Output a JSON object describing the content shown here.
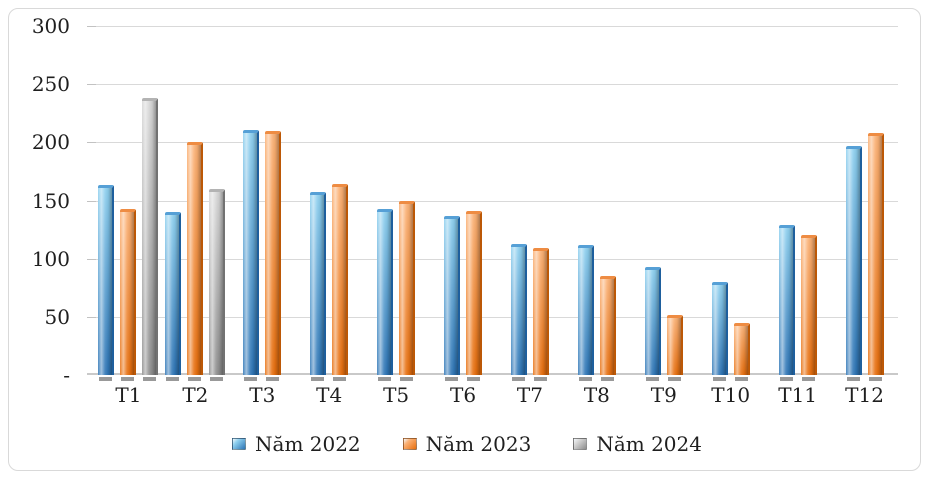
{
  "chart_data": {
    "type": "bar",
    "title": "",
    "categories": [
      "T1",
      "T2",
      "T3",
      "T4",
      "T5",
      "T6",
      "T7",
      "T8",
      "T9",
      "T10",
      "T11",
      "T12"
    ],
    "series": [
      {
        "name": "Năm 2022",
        "values": [
          163,
          140,
          211,
          157,
          143,
          137,
          113,
          112,
          93,
          80,
          129,
          197
        ],
        "color_top": "#8ed0ef",
        "color_bottom": "#2d74b5",
        "color_cap": "#56a0d6",
        "color_edge": "#1e5f9d"
      },
      {
        "name": "Năm 2023",
        "values": [
          143,
          200,
          210,
          164,
          150,
          141,
          109,
          85,
          52,
          45,
          120,
          208
        ],
        "color_top": "#fbb175",
        "color_bottom": "#e76e0d",
        "color_cap": "#ee8c43",
        "color_edge": "#bc5806"
      },
      {
        "name": "Năm 2024",
        "values": [
          238,
          160,
          null,
          null,
          null,
          null,
          null,
          null,
          null,
          null,
          null,
          null
        ],
        "color_top": "#d7d7d7",
        "color_bottom": "#8d8d8d",
        "color_cap": "#b3b3b3",
        "color_edge": "#727272"
      }
    ],
    "y_ticks": [
      {
        "label": "300",
        "value": 300
      },
      {
        "label": "250",
        "value": 250
      },
      {
        "label": "200",
        "value": 200
      },
      {
        "label": "150",
        "value": 150
      },
      {
        "label": "100",
        "value": 100
      },
      {
        "label": "50",
        "value": 50
      },
      {
        "label": "-",
        "value": 0
      }
    ],
    "ylim": [
      0,
      300
    ],
    "grid": true,
    "legend_position": "bottom"
  },
  "colors": {
    "gridline": "#d9d9d9",
    "axis_line": "#c9c9c9",
    "frame_border": "#d9d9d9",
    "text": "#1f1f1f"
  }
}
